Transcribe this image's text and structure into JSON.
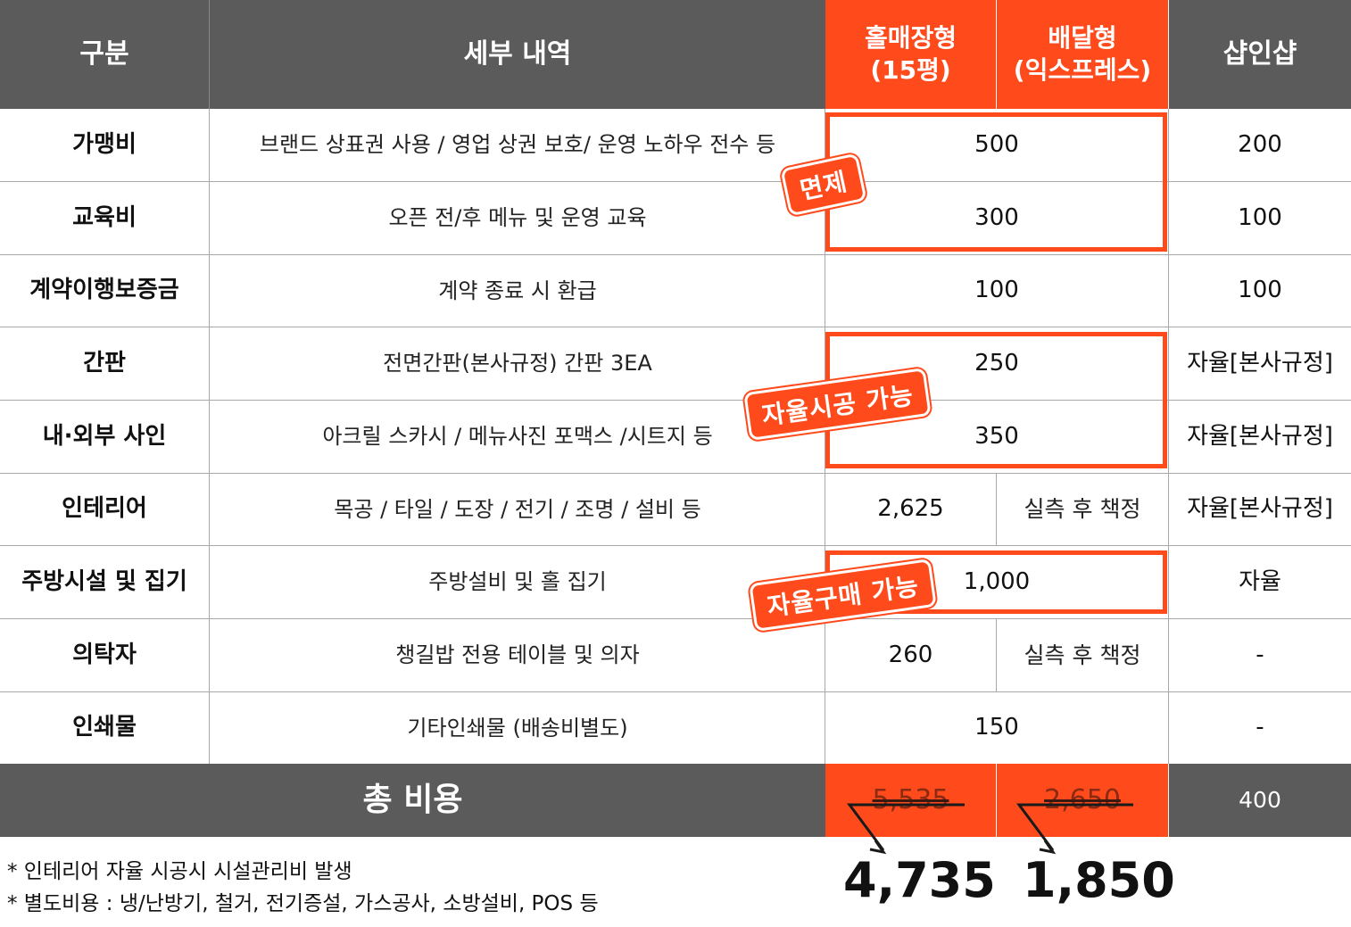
{
  "header": {
    "category": "구분",
    "details": "세부 내역",
    "hall_type": "홀매장형\n(15평)",
    "delivery_type": "배달형\n(익스프레스)",
    "shop_in_shop": "샵인샵"
  },
  "rows": [
    {
      "label": "가맹비",
      "detail": "브랜드 상표권 사용 / 영업 상권 보호/ 운영 노하우 전수 등",
      "main": "500",
      "shop": "200"
    },
    {
      "label": "교육비",
      "detail": "오픈 전/후 메뉴 및 운영 교육",
      "main": "300",
      "shop": "100"
    },
    {
      "label": "계약이행보증금",
      "detail": "계약 종료 시 환급",
      "main": "100",
      "shop": "100"
    },
    {
      "label": "간판",
      "detail": "전면간판(본사규정) 간판 3EA",
      "main": "250",
      "shop": "자율[본사규정]"
    },
    {
      "label": "내·외부 사인",
      "detail": "아크릴 스카시 / 메뉴사진 포맥스 /시트지 등",
      "main": "350",
      "shop": "자율[본사규정]"
    },
    {
      "label": "인테리어",
      "detail": "목공 / 타일 / 도장 / 전기 / 조명 / 설비 등",
      "hall": "2,625",
      "delivery": "실측 후 책정",
      "shop": "자율[본사규정]"
    },
    {
      "label": "주방시설 및 집기",
      "detail": "주방설비 및 홀 집기",
      "main": "1,000",
      "shop": "자율"
    },
    {
      "label": "의탁자",
      "detail": "챙길밥 전용 테이블 및 의자",
      "hall": "260",
      "delivery": "실측 후 책정",
      "shop": "-"
    },
    {
      "label": "인쇄물",
      "detail": "기타인쇄물 (배송비별도)",
      "main": "150",
      "shop": "-"
    }
  ],
  "stamps": {
    "waived": "면제",
    "self_construction": "자율시공 가능",
    "self_purchase": "자율구매 가능"
  },
  "total": {
    "label": "총 비용",
    "hall_old": "5,535",
    "delivery_old": "2,650",
    "shop": "400",
    "hall_new": "4,735",
    "delivery_new": "1,850"
  },
  "notes": [
    "* 인테리어 자율 시공시 시설관리비 발생",
    "* 별도비용 : 냉/난방기, 철거, 전기증설, 가스공사, 소방설비, POS 등"
  ],
  "colors": {
    "accent": "#ff4a1c",
    "header_bg": "#5c5b5c"
  }
}
